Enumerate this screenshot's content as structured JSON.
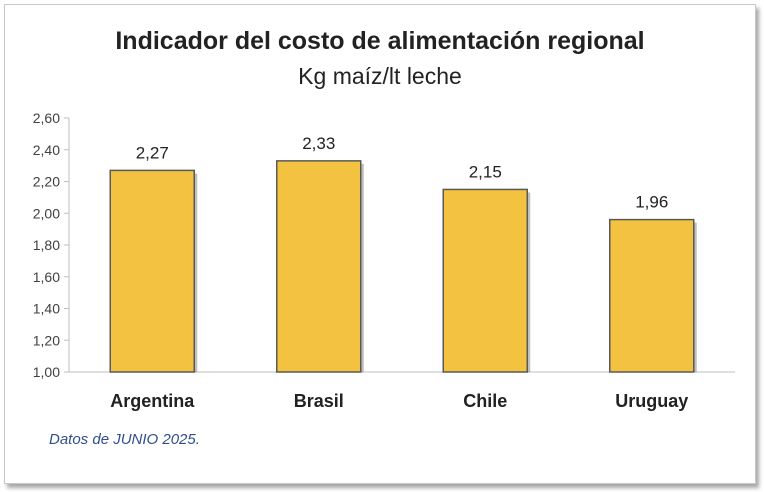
{
  "chart_data": {
    "type": "bar",
    "title": "Indicador del costo de alimentación regional",
    "subtitle": "Kg maíz/lt leche",
    "categories": [
      "Argentina",
      "Brasil",
      "Chile",
      "Uruguay"
    ],
    "values": [
      2.27,
      2.33,
      2.15,
      1.96
    ],
    "value_labels": [
      "2,27",
      "2,33",
      "2,15",
      "1,96"
    ],
    "ylim": [
      1.0,
      2.6
    ],
    "yticks": [
      1.0,
      1.2,
      1.4,
      1.6,
      1.8,
      2.0,
      2.2,
      2.4,
      2.6
    ],
    "ytick_labels": [
      "1,00",
      "1,20",
      "1,40",
      "1,60",
      "1,80",
      "2,00",
      "2,20",
      "2,40",
      "2,60"
    ],
    "grid": false,
    "bar_color": "#F2C240",
    "bar_edge_color": "#595959",
    "footnote": "Datos de JUNIO 2025."
  }
}
